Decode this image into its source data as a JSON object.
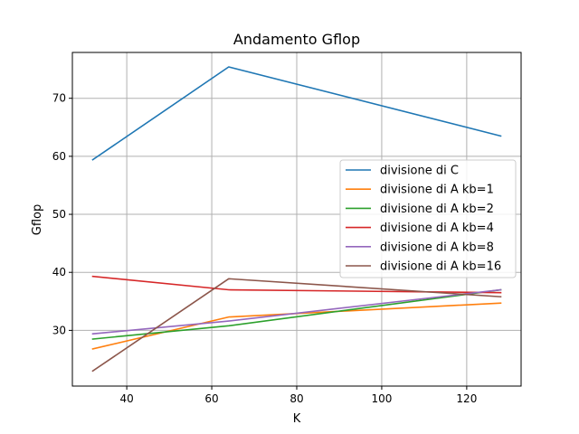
{
  "chart_data": {
    "type": "line",
    "title": "Andamento Gflop",
    "xlabel": "K",
    "ylabel": "Gflop",
    "x": [
      32,
      64,
      128
    ],
    "xlim": [
      27.2,
      132.8
    ],
    "ylim": [
      20.4,
      77.9
    ],
    "xticks": [
      40,
      60,
      80,
      100,
      120
    ],
    "yticks": [
      30,
      40,
      50,
      60,
      70
    ],
    "grid": true,
    "legend_position": "center-right",
    "series": [
      {
        "name": "divisione di C",
        "color": "#1f77b4",
        "values": [
          59.4,
          75.4,
          63.5
        ]
      },
      {
        "name": "divisione di A kb=1",
        "color": "#ff7f0e",
        "values": [
          26.8,
          32.3,
          34.7
        ]
      },
      {
        "name": "divisione di A kb=2",
        "color": "#2ca02c",
        "values": [
          28.5,
          30.8,
          37.0
        ]
      },
      {
        "name": "divisione di A kb=4",
        "color": "#d62728",
        "values": [
          39.3,
          37.0,
          36.5
        ]
      },
      {
        "name": "divisione di A kb=8",
        "color": "#9467bd",
        "values": [
          29.4,
          31.6,
          37.0
        ]
      },
      {
        "name": "divisione di A kb=16",
        "color": "#8c564b",
        "values": [
          23.0,
          38.9,
          35.8
        ]
      }
    ]
  }
}
